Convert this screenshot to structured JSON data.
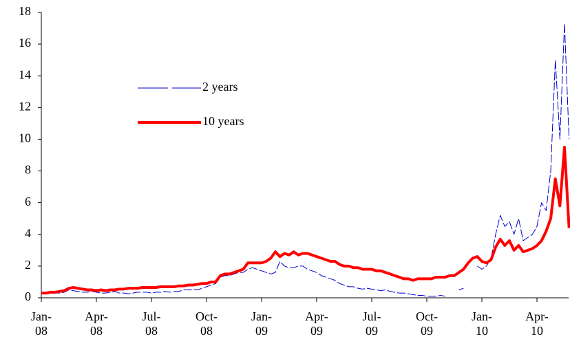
{
  "chart_data": {
    "type": "line",
    "categories": [
      "Jan-08",
      null,
      null,
      null,
      null,
      null,
      null,
      null,
      null,
      null,
      null,
      null,
      "Apr-08",
      null,
      null,
      null,
      null,
      null,
      null,
      null,
      null,
      null,
      null,
      null,
      "Jul-08",
      null,
      null,
      null,
      null,
      null,
      null,
      null,
      null,
      null,
      null,
      null,
      "Oct-08",
      null,
      null,
      null,
      null,
      null,
      null,
      null,
      null,
      null,
      null,
      null,
      "Jan-09",
      null,
      null,
      null,
      null,
      null,
      null,
      null,
      null,
      null,
      null,
      null,
      "Apr-09",
      null,
      null,
      null,
      null,
      null,
      null,
      null,
      null,
      null,
      null,
      null,
      "Jul-09",
      null,
      null,
      null,
      null,
      null,
      null,
      null,
      null,
      null,
      null,
      null,
      "Oct-09",
      null,
      null,
      null,
      null,
      null,
      null,
      null,
      null,
      null,
      null,
      null,
      "Jan-10",
      null,
      null,
      null,
      null,
      null,
      null,
      null,
      null,
      null,
      null,
      null,
      "Apr-10",
      null,
      null,
      null,
      null,
      null,
      null,
      null
    ],
    "series": [
      {
        "name": "2 years",
        "color": "#0000cc",
        "dashed": true,
        "values": [
          0.3,
          0.25,
          0.3,
          0.3,
          0.3,
          0.35,
          0.5,
          0.45,
          0.4,
          0.35,
          0.35,
          0.4,
          0.35,
          0.3,
          0.3,
          0.35,
          0.4,
          0.3,
          0.3,
          0.25,
          0.3,
          0.35,
          0.35,
          0.35,
          0.3,
          0.35,
          0.35,
          0.4,
          0.35,
          0.4,
          0.4,
          0.5,
          0.5,
          0.55,
          0.5,
          0.6,
          0.7,
          0.8,
          0.9,
          1.3,
          1.4,
          1.4,
          1.5,
          1.6,
          1.6,
          1.8,
          1.9,
          1.8,
          1.7,
          1.6,
          1.5,
          1.6,
          2.3,
          2.0,
          1.9,
          1.9,
          2.0,
          2.0,
          1.8,
          1.7,
          1.6,
          1.4,
          1.3,
          1.2,
          1.1,
          0.9,
          0.8,
          0.7,
          0.7,
          0.6,
          0.55,
          0.6,
          0.55,
          0.5,
          0.45,
          0.5,
          0.4,
          0.35,
          0.3,
          0.3,
          0.25,
          0.2,
          0.15,
          0.15,
          0.1,
          0.1,
          0.1,
          0.15,
          0.1,
          null,
          null,
          0.5,
          0.6,
          null,
          null,
          2.0,
          1.8,
          2.0,
          2.5,
          4.0,
          5.2,
          4.5,
          4.8,
          4.0,
          5.0,
          3.6,
          3.8,
          4.0,
          4.5,
          6.0,
          5.5,
          8.0,
          15.0,
          10.0,
          17.3,
          10.0
        ]
      },
      {
        "name": "10 years",
        "color": "#ff0000",
        "dashed": false,
        "values": [
          0.3,
          0.3,
          0.35,
          0.35,
          0.4,
          0.45,
          0.6,
          0.65,
          0.6,
          0.55,
          0.5,
          0.5,
          0.45,
          0.5,
          0.45,
          0.5,
          0.5,
          0.55,
          0.55,
          0.6,
          0.6,
          0.6,
          0.65,
          0.65,
          0.65,
          0.65,
          0.7,
          0.7,
          0.7,
          0.7,
          0.75,
          0.75,
          0.8,
          0.8,
          0.85,
          0.9,
          0.9,
          1.0,
          1.0,
          1.4,
          1.5,
          1.5,
          1.6,
          1.7,
          1.8,
          2.2,
          2.2,
          2.2,
          2.2,
          2.3,
          2.5,
          2.9,
          2.6,
          2.8,
          2.7,
          2.9,
          2.7,
          2.8,
          2.8,
          2.7,
          2.6,
          2.5,
          2.4,
          2.3,
          2.3,
          2.1,
          2.0,
          2.0,
          1.9,
          1.9,
          1.8,
          1.8,
          1.8,
          1.7,
          1.7,
          1.6,
          1.5,
          1.4,
          1.3,
          1.2,
          1.2,
          1.1,
          1.2,
          1.2,
          1.2,
          1.2,
          1.3,
          1.3,
          1.3,
          1.4,
          1.4,
          1.6,
          1.8,
          2.2,
          2.5,
          2.6,
          2.3,
          2.2,
          2.4,
          3.2,
          3.7,
          3.3,
          3.6,
          3.0,
          3.3,
          2.9,
          3.0,
          3.1,
          3.3,
          3.6,
          4.2,
          5.0,
          7.5,
          5.8,
          9.5,
          4.4
        ]
      }
    ],
    "ylim": [
      0,
      18
    ],
    "yticks": [
      0,
      2,
      4,
      6,
      8,
      10,
      12,
      14,
      16,
      18
    ],
    "grid": false,
    "legend": "upper left"
  }
}
